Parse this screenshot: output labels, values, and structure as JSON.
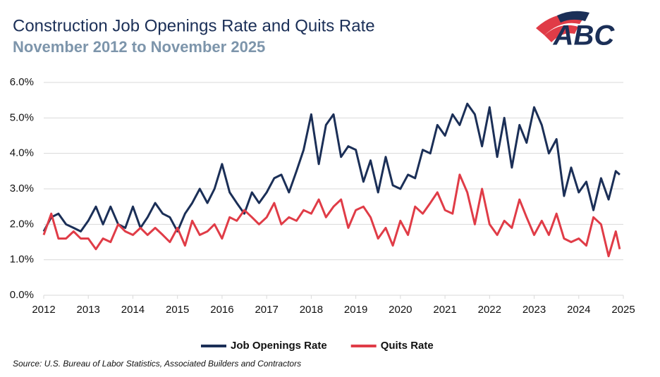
{
  "chart_data": {
    "type": "line",
    "title": "Construction Job Openings Rate and Quits Rate",
    "subtitle": "November 2012 to November 2025",
    "source": "Source: U.S. Bureau of Labor Statistics, Associated Builders and Contractors",
    "logo": "ABC",
    "x": [
      2012,
      2012.17,
      2012.33,
      2012.5,
      2012.67,
      2012.83,
      2013,
      2013.17,
      2013.33,
      2013.5,
      2013.67,
      2013.83,
      2014,
      2014.17,
      2014.33,
      2014.5,
      2014.67,
      2014.83,
      2015,
      2015.17,
      2015.33,
      2015.5,
      2015.67,
      2015.83,
      2016,
      2016.17,
      2016.33,
      2016.5,
      2016.67,
      2016.83,
      2017,
      2017.17,
      2017.33,
      2017.5,
      2017.67,
      2017.83,
      2018,
      2018.17,
      2018.33,
      2018.5,
      2018.67,
      2018.83,
      2019,
      2019.17,
      2019.33,
      2019.5,
      2019.67,
      2019.83,
      2020,
      2020.17,
      2020.33,
      2020.5,
      2020.67,
      2020.83,
      2021,
      2021.17,
      2021.33,
      2021.5,
      2021.67,
      2021.83,
      2022,
      2022.17,
      2022.33,
      2022.5,
      2022.67,
      2022.83,
      2023,
      2023.17,
      2023.33,
      2023.5,
      2023.67,
      2023.83,
      2024,
      2024.17,
      2024.33,
      2024.5,
      2024.67,
      2024.83,
      2024.92
    ],
    "series": [
      {
        "name": "Job Openings Rate",
        "color": "#1b2f57",
        "values": [
          1.8,
          2.2,
          2.3,
          2.0,
          1.9,
          1.8,
          2.1,
          2.5,
          2.0,
          2.5,
          2.0,
          1.9,
          2.5,
          1.9,
          2.2,
          2.6,
          2.3,
          2.2,
          1.8,
          2.3,
          2.6,
          3.0,
          2.6,
          3.0,
          3.7,
          2.9,
          2.6,
          2.3,
          2.9,
          2.6,
          2.9,
          3.3,
          3.4,
          2.9,
          3.5,
          4.1,
          5.1,
          3.7,
          4.8,
          5.1,
          3.9,
          4.2,
          4.1,
          3.2,
          3.8,
          2.9,
          3.9,
          3.1,
          3.0,
          3.4,
          3.3,
          4.1,
          4.0,
          4.8,
          4.5,
          5.1,
          4.8,
          5.4,
          5.1,
          4.2,
          5.3,
          3.9,
          5.0,
          3.6,
          4.8,
          4.3,
          5.3,
          4.8,
          4.0,
          4.4,
          2.8,
          3.6,
          2.9,
          3.2,
          2.4,
          3.3,
          2.7,
          3.5,
          3.4
        ]
      },
      {
        "name": "Quits Rate",
        "color": "#e03c47",
        "values": [
          1.7,
          2.3,
          1.6,
          1.6,
          1.8,
          1.6,
          1.6,
          1.3,
          1.6,
          1.5,
          2.0,
          1.8,
          1.7,
          1.9,
          1.7,
          1.9,
          1.7,
          1.5,
          1.9,
          1.4,
          2.1,
          1.7,
          1.8,
          2.0,
          1.6,
          2.2,
          2.1,
          2.4,
          2.2,
          2.0,
          2.2,
          2.6,
          2.0,
          2.2,
          2.1,
          2.4,
          2.3,
          2.7,
          2.2,
          2.5,
          2.7,
          1.9,
          2.4,
          2.5,
          2.2,
          1.6,
          1.9,
          1.4,
          2.1,
          1.7,
          2.5,
          2.3,
          2.6,
          2.9,
          2.4,
          2.3,
          3.4,
          2.9,
          2.0,
          3.0,
          2.0,
          1.7,
          2.1,
          1.9,
          2.7,
          2.2,
          1.7,
          2.1,
          1.7,
          2.3,
          1.6,
          1.5,
          1.6,
          1.4,
          2.2,
          2.0,
          1.1,
          1.8,
          1.3
        ]
      }
    ],
    "xlim": [
      2012,
      2025
    ],
    "xticks": [
      2012,
      2013,
      2014,
      2015,
      2016,
      2017,
      2018,
      2019,
      2020,
      2021,
      2022,
      2023,
      2024,
      2025
    ],
    "ylim": [
      0,
      6
    ],
    "yticks": [
      {
        "value": 0,
        "label": "0.0%"
      },
      {
        "value": 1,
        "label": "1.0%"
      },
      {
        "value": 2,
        "label": "2.0%"
      },
      {
        "value": 3,
        "label": "3.0%"
      },
      {
        "value": 4,
        "label": "4.0%"
      },
      {
        "value": 5,
        "label": "5.0%"
      },
      {
        "value": 6,
        "label": "6.0%"
      }
    ],
    "grid": true,
    "legend": "bottom"
  }
}
